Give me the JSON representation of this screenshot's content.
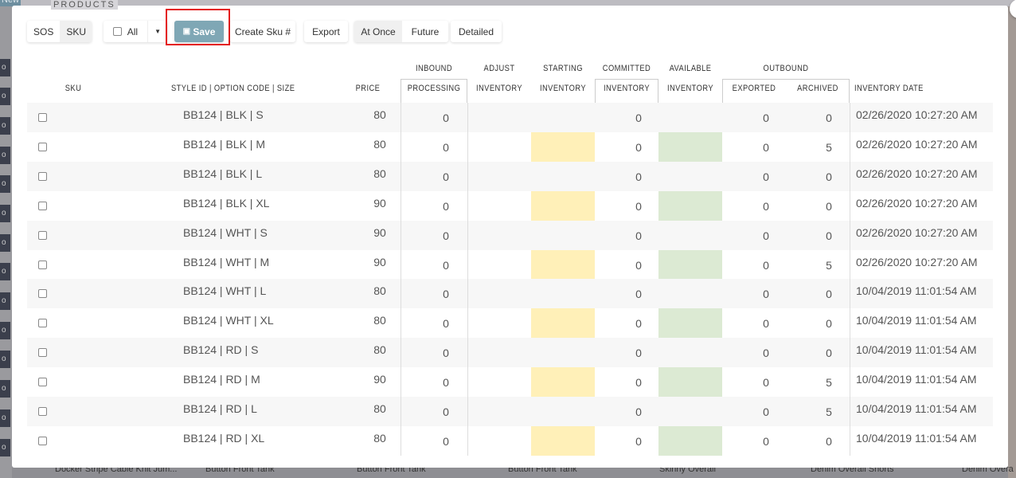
{
  "background": {
    "new_label": "New",
    "section_title": "PRODUCTS",
    "badge_glyph": "o",
    "products": [
      "Docker Stripe Cable Knit Jum...",
      "Button Front Tank",
      "Button Front Tank",
      "Button Front Tank",
      "Skinny Overall",
      "Denim Overall Shorts",
      "Denim Overa"
    ]
  },
  "toolbar": {
    "sos": "SOS",
    "sku": "SKU",
    "all": "All",
    "save": "Save",
    "create_sku": "Create Sku #",
    "export": "Export",
    "at_once": "At Once",
    "future": "Future",
    "detailed": "Detailed"
  },
  "colors": {
    "save": "#7fa7b5",
    "starting": "#fff0b8",
    "available": "#dcead3",
    "highlight": "#e41c1c"
  },
  "headers": {
    "sku": "SKU",
    "style": "STYLE ID | OPTION CODE | SIZE",
    "price": "PRICE",
    "inbound": "INBOUND",
    "processing": "PROCESSING",
    "adjust": "ADJUST",
    "adjust2": "INVENTORY",
    "starting": "STARTING",
    "starting2": "INVENTORY",
    "committed": "COMMITTED",
    "committed2": "INVENTORY",
    "available": "AVAILABLE",
    "available2": "INVENTORY",
    "outbound": "OUTBOUND",
    "exported": "EXPORTED",
    "archived": "ARCHIVED",
    "date": "INVENTORY DATE"
  },
  "rows": [
    {
      "style": "BB124 | BLK | S",
      "price": "80",
      "processing": "0",
      "committed": "0",
      "exported": "0",
      "archived": "0",
      "date": "02/26/2020 10:27:20 AM"
    },
    {
      "style": "BB124 | BLK | M",
      "price": "80",
      "processing": "0",
      "committed": "0",
      "exported": "0",
      "archived": "5",
      "date": "02/26/2020 10:27:20 AM"
    },
    {
      "style": "BB124 | BLK | L",
      "price": "80",
      "processing": "0",
      "committed": "0",
      "exported": "0",
      "archived": "0",
      "date": "02/26/2020 10:27:20 AM"
    },
    {
      "style": "BB124 | BLK | XL",
      "price": "90",
      "processing": "0",
      "committed": "0",
      "exported": "0",
      "archived": "0",
      "date": "02/26/2020 10:27:20 AM"
    },
    {
      "style": "BB124 | WHT | S",
      "price": "90",
      "processing": "0",
      "committed": "0",
      "exported": "0",
      "archived": "0",
      "date": "02/26/2020 10:27:20 AM"
    },
    {
      "style": "BB124 | WHT | M",
      "price": "90",
      "processing": "0",
      "committed": "0",
      "exported": "0",
      "archived": "5",
      "date": "02/26/2020 10:27:20 AM"
    },
    {
      "style": "BB124 | WHT | L",
      "price": "80",
      "processing": "0",
      "committed": "0",
      "exported": "0",
      "archived": "0",
      "date": "10/04/2019 11:01:54 AM"
    },
    {
      "style": "BB124 | WHT | XL",
      "price": "80",
      "processing": "0",
      "committed": "0",
      "exported": "0",
      "archived": "0",
      "date": "10/04/2019 11:01:54 AM"
    },
    {
      "style": "BB124 | RD | S",
      "price": "80",
      "processing": "0",
      "committed": "0",
      "exported": "0",
      "archived": "0",
      "date": "10/04/2019 11:01:54 AM"
    },
    {
      "style": "BB124 | RD | M",
      "price": "90",
      "processing": "0",
      "committed": "0",
      "exported": "0",
      "archived": "5",
      "date": "10/04/2019 11:01:54 AM"
    },
    {
      "style": "BB124 | RD | L",
      "price": "80",
      "processing": "0",
      "committed": "0",
      "exported": "0",
      "archived": "5",
      "date": "10/04/2019 11:01:54 AM"
    },
    {
      "style": "BB124 | RD | XL",
      "price": "80",
      "processing": "0",
      "committed": "0",
      "exported": "0",
      "archived": "0",
      "date": "10/04/2019 11:01:54 AM"
    }
  ]
}
